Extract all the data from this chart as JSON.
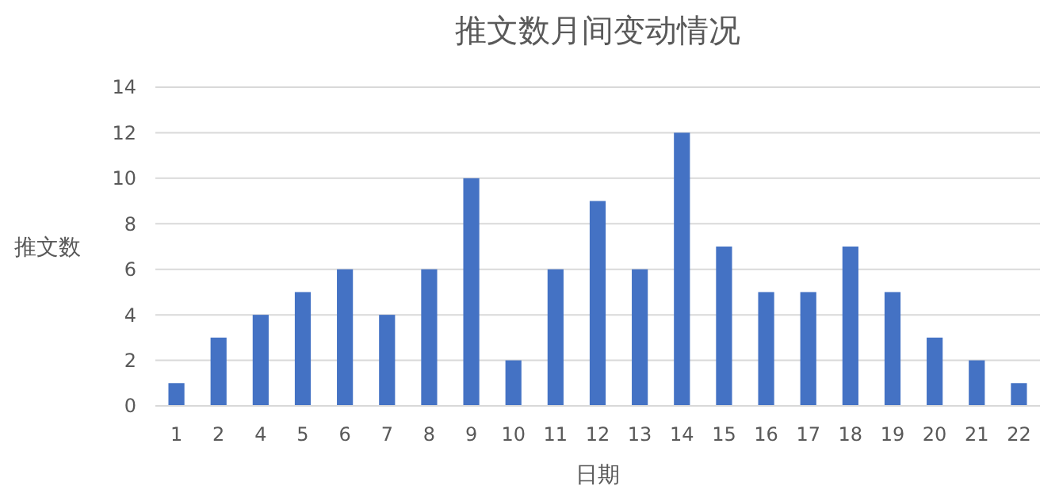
{
  "chart_data": {
    "type": "bar",
    "title": "推文数月间变动情况",
    "xlabel": "日期",
    "ylabel": "推文数",
    "categories": [
      "1",
      "2",
      "4",
      "5",
      "6",
      "7",
      "8",
      "9",
      "10",
      "11",
      "12",
      "13",
      "14",
      "15",
      "16",
      "17",
      "18",
      "19",
      "20",
      "21",
      "22"
    ],
    "values": [
      1,
      3,
      4,
      5,
      6,
      4,
      6,
      10,
      2,
      6,
      9,
      6,
      12,
      7,
      5,
      5,
      7,
      5,
      3,
      2,
      1
    ],
    "color": "#4472c4",
    "ylim": [
      0,
      14
    ],
    "yticks": [
      0,
      2,
      4,
      6,
      8,
      10,
      12,
      14
    ],
    "grid": "y"
  }
}
